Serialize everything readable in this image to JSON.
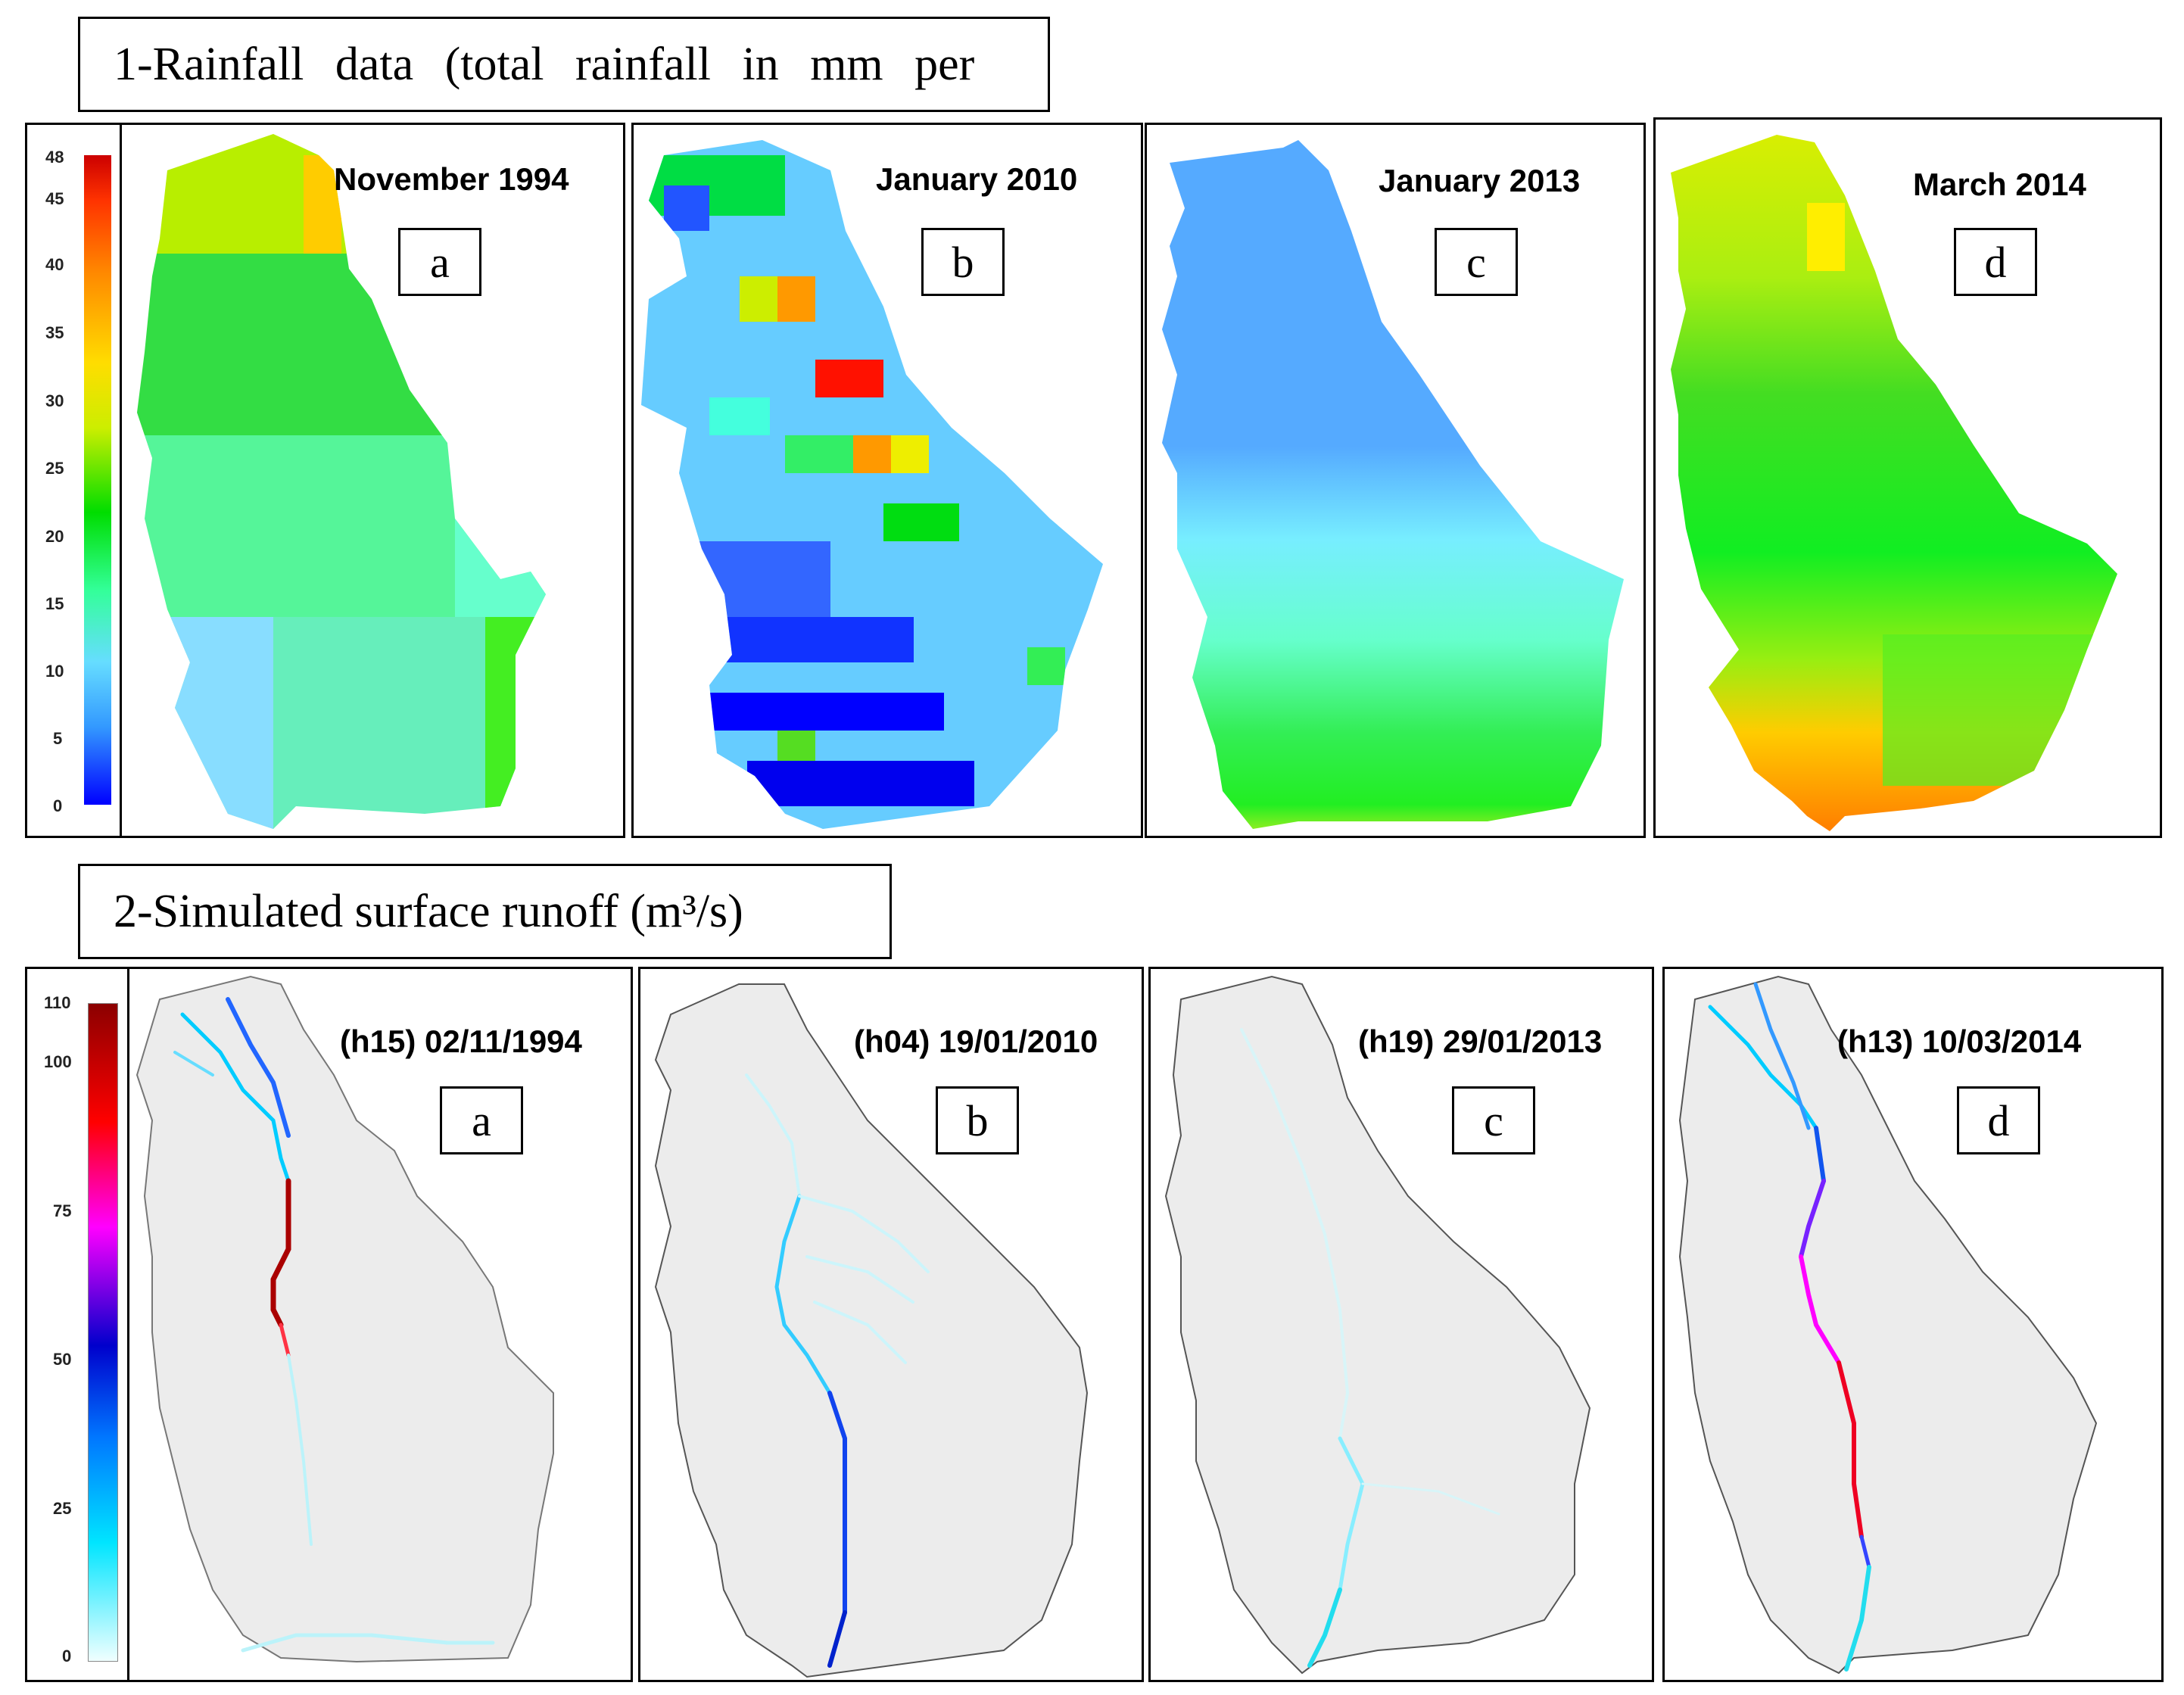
{
  "section1": {
    "title": "1-Rainfall  data  (total  rainfall  in  mm  per",
    "legend": {
      "ticks": [
        "48",
        "45",
        "40",
        "35",
        "30",
        "25",
        "20",
        "15",
        "10",
        "5",
        "0"
      ],
      "min": 0,
      "max": 48
    },
    "panels": [
      {
        "title": "November 1994",
        "letter": "a"
      },
      {
        "title": "January 2010",
        "letter": "b"
      },
      {
        "title": "January 2013",
        "letter": "c"
      },
      {
        "title": "March 2014",
        "letter": "d"
      }
    ]
  },
  "section2": {
    "title": "2-Simulated surface runoff (m³/s)",
    "legend": {
      "ticks": [
        "110",
        "100",
        "75",
        "50",
        "25",
        "0"
      ],
      "min": 0,
      "max": 110
    },
    "panels": [
      {
        "title": "(h15) 02/11/1994",
        "letter": "a"
      },
      {
        "title": "(h04) 19/01/2010",
        "letter": "b"
      },
      {
        "title": "(h19) 29/01/2013",
        "letter": "c"
      },
      {
        "title": "(h13) 10/03/2014",
        "letter": "d"
      }
    ]
  },
  "colors": {
    "rainfall_ramp": [
      "#0000ff",
      "#3399ff",
      "#66ddff",
      "#33ff99",
      "#00dd00",
      "#ccee00",
      "#ffdd00",
      "#ff8800",
      "#ff0000",
      "#cc0000"
    ],
    "runoff_ramp": [
      "#e8ffff",
      "#00e5ff",
      "#0066ff",
      "#0000cc",
      "#ff00ff",
      "#ff0000",
      "#8b0000"
    ],
    "basin_fill": "#ececec",
    "basin_outline": "#777777"
  }
}
